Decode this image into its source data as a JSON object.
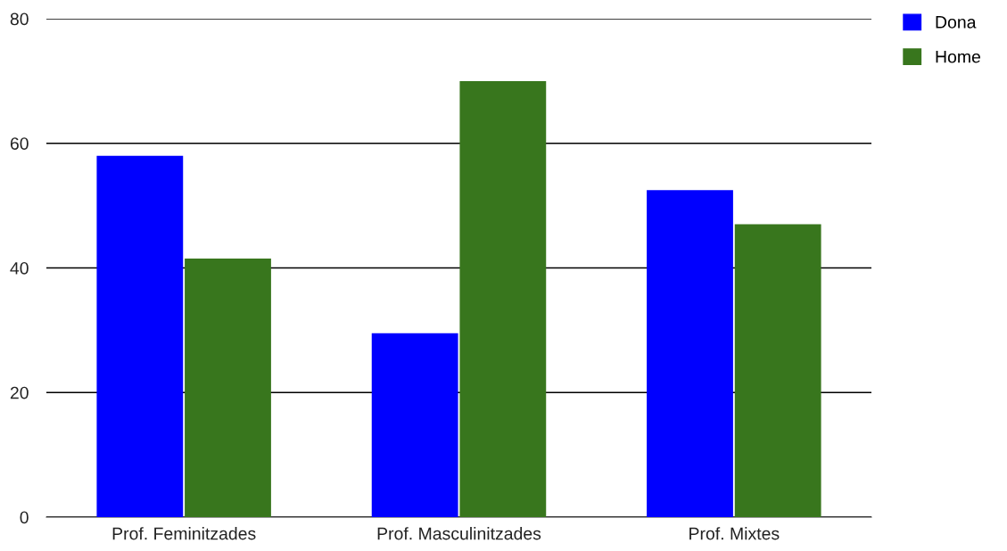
{
  "chart_data": {
    "type": "bar",
    "categories": [
      "Prof. Feminitzades",
      "Prof. Masculinitzades",
      "Prof. Mixtes"
    ],
    "series": [
      {
        "name": "Dona",
        "color": "#0000ff",
        "values": [
          58,
          29.5,
          52.5
        ]
      },
      {
        "name": "Home",
        "color": "#38761d",
        "values": [
          41.5,
          70,
          47
        ]
      }
    ],
    "ylim": [
      0,
      80
    ],
    "yticks": [
      0,
      20,
      40,
      60,
      80
    ],
    "grid": "y",
    "legend": "top right"
  }
}
